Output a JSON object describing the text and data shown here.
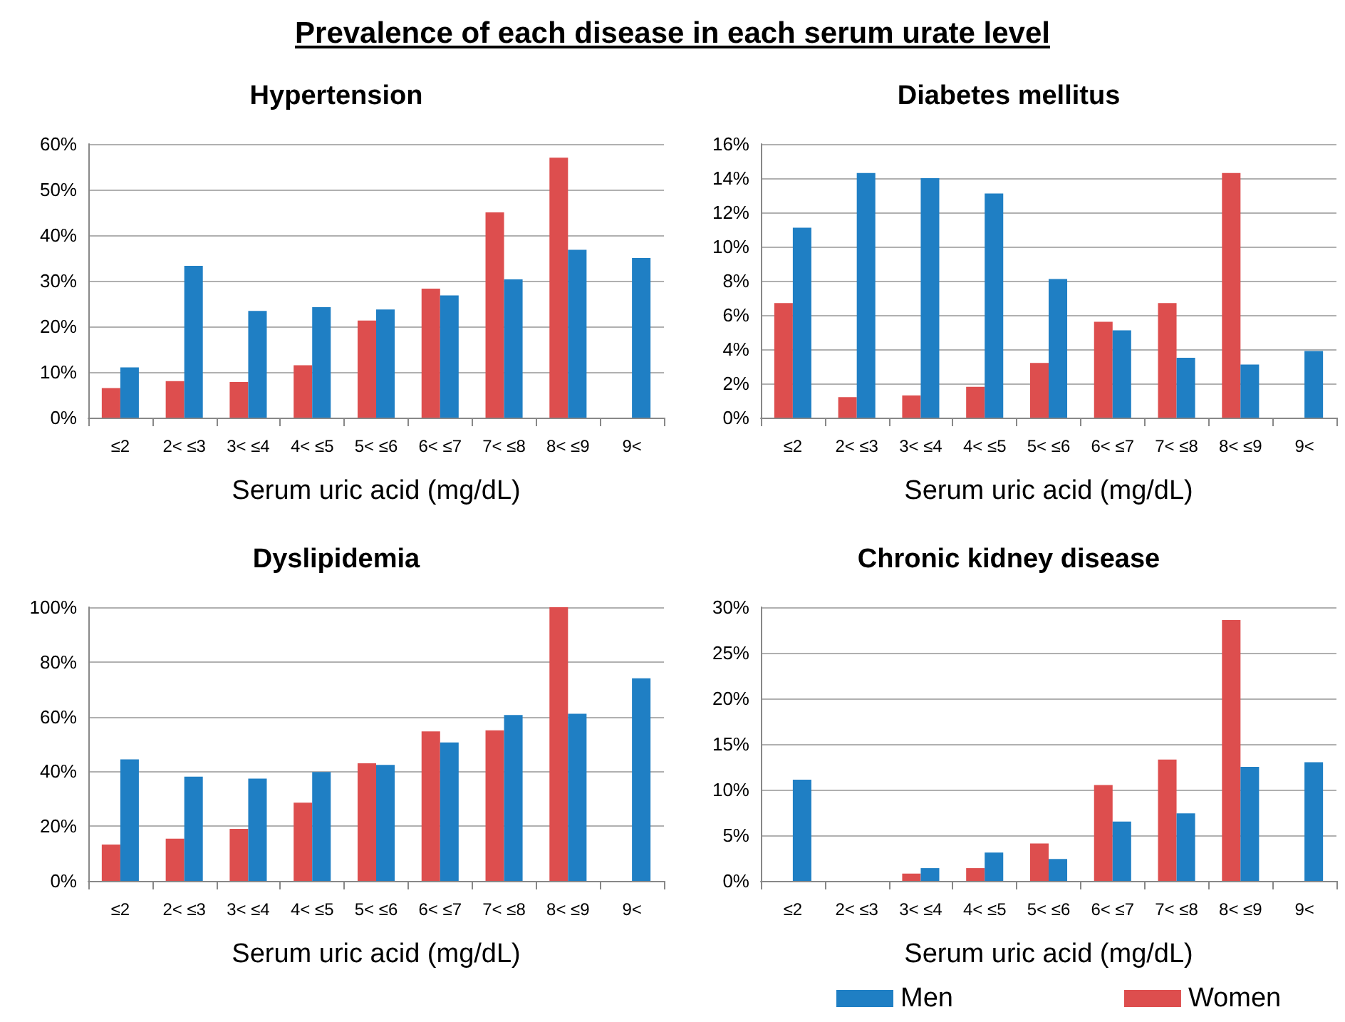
{
  "chart_data": [
    {
      "type": "bar",
      "title": "Hypertension",
      "annotations": [
        "Prevalence of each disease in each serum urate level"
      ],
      "xlabel": "Serum uric acid (mg/dL)",
      "categories": [
        "≤2",
        "2< ≤3",
        "3< ≤4",
        "4< ≤5",
        "5< ≤6",
        "6< ≤7",
        "7< ≤8",
        "8< ≤9",
        "9<"
      ],
      "series": [
        {
          "color": "#dd4e4e",
          "values": [
            6.5,
            8,
            7.8,
            11.5,
            21.3,
            28.3,
            45,
            57,
            null
          ]
        },
        {
          "color": "#1f7fc4",
          "values": [
            11,
            33.3,
            23.4,
            24.2,
            23.7,
            26.8,
            30.3,
            36.8,
            35
          ]
        }
      ],
      "ylim": [
        0,
        60
      ],
      "yticks": [
        {
          "value": 0,
          "label": "0%"
        },
        {
          "value": 10,
          "label": "10%"
        },
        {
          "value": 20,
          "label": "20%"
        },
        {
          "value": 30,
          "label": "30%"
        },
        {
          "value": 40,
          "label": "40%"
        },
        {
          "value": 50,
          "label": "50%"
        },
        {
          "value": 60,
          "label": "60%"
        }
      ],
      "grid": "y"
    },
    {
      "type": "bar",
      "title": "Diabetes mellitus",
      "xlabel": "Serum uric acid (mg/dL)",
      "categories": [
        "≤2",
        "2< ≤3",
        "3< ≤4",
        "4< ≤5",
        "5< ≤6",
        "6< ≤7",
        "7< ≤8",
        "8< ≤9",
        "9<"
      ],
      "series": [
        {
          "color": "#dd4e4e",
          "values": [
            6.7,
            1.2,
            1.3,
            1.8,
            3.2,
            5.6,
            6.7,
            14.3,
            null
          ]
        },
        {
          "color": "#1f7fc4",
          "values": [
            11.1,
            14.3,
            14.0,
            13.1,
            8.1,
            5.1,
            3.5,
            3.1,
            3.9
          ]
        }
      ],
      "ylim": [
        0,
        16
      ],
      "yticks": [
        {
          "value": 0,
          "label": "0%"
        },
        {
          "value": 2,
          "label": "2%"
        },
        {
          "value": 4,
          "label": "4%"
        },
        {
          "value": 6,
          "label": "6%"
        },
        {
          "value": 8,
          "label": "8%"
        },
        {
          "value": 10,
          "label": "10%"
        },
        {
          "value": 12,
          "label": "12%"
        },
        {
          "value": 14,
          "label": "14%"
        },
        {
          "value": 16,
          "label": "16%"
        }
      ],
      "grid": "y"
    },
    {
      "type": "bar",
      "title": "Dyslipidemia",
      "xlabel": "Serum uric acid (mg/dL)",
      "categories": [
        "≤2",
        "2< ≤3",
        "3< ≤4",
        "4< ≤5",
        "5< ≤6",
        "6< ≤7",
        "7< ≤8",
        "8< ≤9",
        "9<"
      ],
      "series": [
        {
          "color": "#dd4e4e",
          "values": [
            13.3,
            15.4,
            19.0,
            28.6,
            43.0,
            54.6,
            55.0,
            100,
            null
          ]
        },
        {
          "color": "#1f7fc4",
          "values": [
            44.4,
            38.1,
            37.4,
            39.8,
            42.4,
            50.6,
            60.6,
            61.1,
            74
          ]
        }
      ],
      "ylim": [
        0,
        100
      ],
      "yticks": [
        {
          "value": 0,
          "label": "0%"
        },
        {
          "value": 20,
          "label": "20%"
        },
        {
          "value": 40,
          "label": "40%"
        },
        {
          "value": 60,
          "label": "60%"
        },
        {
          "value": 80,
          "label": "80%"
        },
        {
          "value": 100,
          "label": "100%"
        }
      ],
      "grid": "y"
    },
    {
      "type": "bar",
      "title": "Chronic kidney disease",
      "xlabel": "Serum uric acid (mg/dL)",
      "categories": [
        "≤2",
        "2< ≤3",
        "3< ≤4",
        "4< ≤5",
        "5< ≤6",
        "6< ≤7",
        "7< ≤8",
        "8< ≤9",
        "9<"
      ],
      "series": [
        {
          "name": "Women",
          "color": "#dd4e4e",
          "values": [
            null,
            null,
            0.8,
            1.4,
            4.1,
            10.5,
            13.3,
            28.6,
            null
          ]
        },
        {
          "name": "Men",
          "color": "#1f7fc4",
          "values": [
            11.1,
            null,
            1.4,
            3.1,
            2.4,
            6.5,
            7.4,
            12.5,
            13.0
          ]
        }
      ],
      "ylim": [
        0,
        30
      ],
      "yticks": [
        {
          "value": 0,
          "label": "0%"
        },
        {
          "value": 5,
          "label": "5%"
        },
        {
          "value": 10,
          "label": "10%"
        },
        {
          "value": 15,
          "label": "15%"
        },
        {
          "value": 20,
          "label": "20%"
        },
        {
          "value": 25,
          "label": "25%"
        },
        {
          "value": 30,
          "label": "30%"
        }
      ],
      "grid": "y",
      "legend": "bottom"
    }
  ]
}
